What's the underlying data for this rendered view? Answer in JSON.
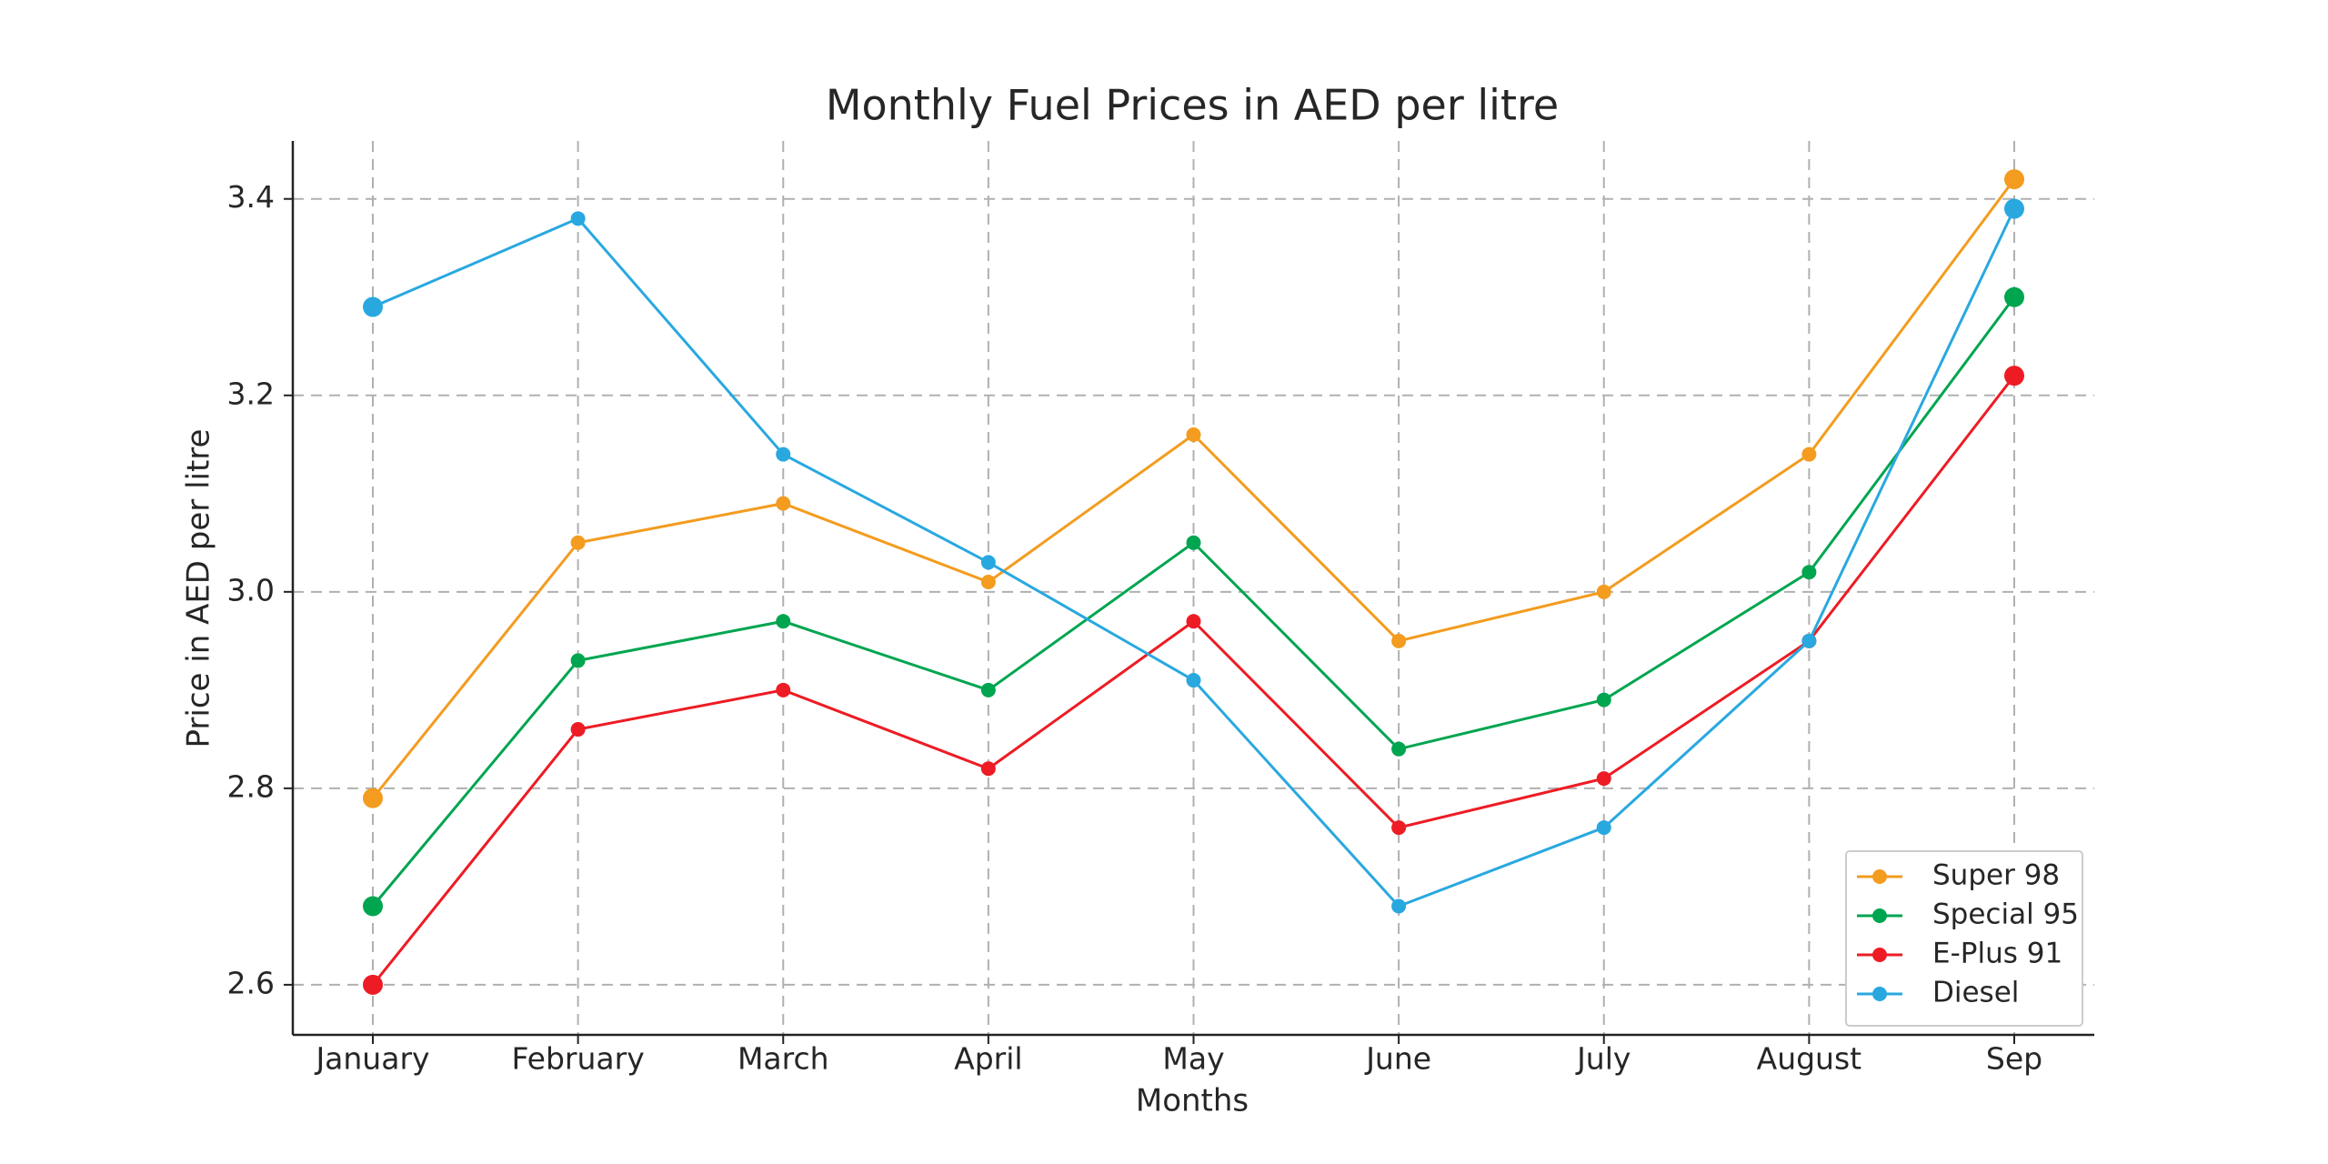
{
  "chart_data": {
    "type": "line",
    "title": "Monthly Fuel Prices in AED per litre",
    "x_label": "Months",
    "y_label": "Price in AED per litre",
    "categories": [
      "January",
      "February",
      "March",
      "April",
      "May",
      "June",
      "July",
      "August",
      "Sep"
    ],
    "series": [
      {
        "name": "Super 98",
        "color": "#f39c1f",
        "values": [
          2.79,
          3.05,
          3.09,
          3.01,
          3.16,
          2.95,
          3.0,
          3.14,
          3.42
        ]
      },
      {
        "name": "Special 95",
        "color": "#00a550",
        "values": [
          2.68,
          2.93,
          2.97,
          2.9,
          3.05,
          2.84,
          2.89,
          3.02,
          3.3
        ]
      },
      {
        "name": "E-Plus 91",
        "color": "#ed1c24",
        "values": [
          2.6,
          2.86,
          2.9,
          2.82,
          2.97,
          2.76,
          2.81,
          2.95,
          3.22
        ]
      },
      {
        "name": "Diesel",
        "color": "#29a8e0",
        "values": [
          3.29,
          3.38,
          3.14,
          3.03,
          2.91,
          2.68,
          2.76,
          2.95,
          3.39
        ]
      }
    ],
    "ylim": [
      2.549,
      3.459
    ],
    "yticks": [
      {
        "value": 2.6,
        "label": "2.6"
      },
      {
        "value": 2.8,
        "label": "2.8"
      },
      {
        "value": 3.0,
        "label": "3.0"
      },
      {
        "value": 3.2,
        "label": "3.2"
      },
      {
        "value": 3.4,
        "label": "3.4"
      }
    ],
    "grid": true,
    "legend": "lower right"
  }
}
